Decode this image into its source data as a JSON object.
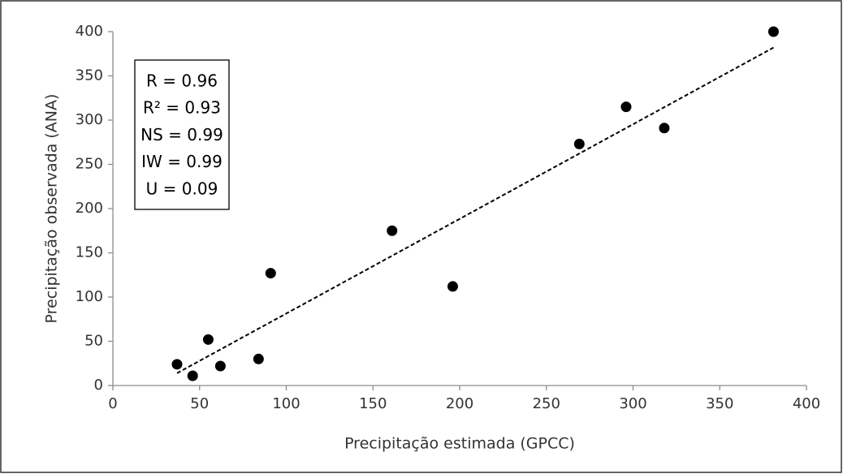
{
  "chart_data": {
    "type": "scatter",
    "xlabel": "Precipitação estimada (GPCC)",
    "ylabel": "Precipitação observada (ANA)",
    "x": [
      37,
      46,
      55,
      62,
      84,
      91,
      161,
      196,
      269,
      296,
      318,
      381
    ],
    "values": [
      24,
      11,
      52,
      22,
      30,
      127,
      175,
      112,
      273,
      315,
      291,
      400
    ],
    "color": "#000000",
    "trendline": {
      "x": [
        37,
        381
      ],
      "y": [
        14,
        382
      ],
      "color": "#000000"
    },
    "annotations": [
      "R = 0.96",
      "R² = 0.93",
      "NS = 0.99",
      "IW = 0.99",
      "U = 0.09"
    ],
    "xlim": [
      0,
      400
    ],
    "ylim": [
      0,
      400
    ],
    "xticks": [
      0,
      50,
      100,
      150,
      200,
      250,
      300,
      350,
      400
    ],
    "yticks": [
      0,
      50,
      100,
      150,
      200,
      250,
      300,
      350,
      400
    ],
    "grid": false
  }
}
